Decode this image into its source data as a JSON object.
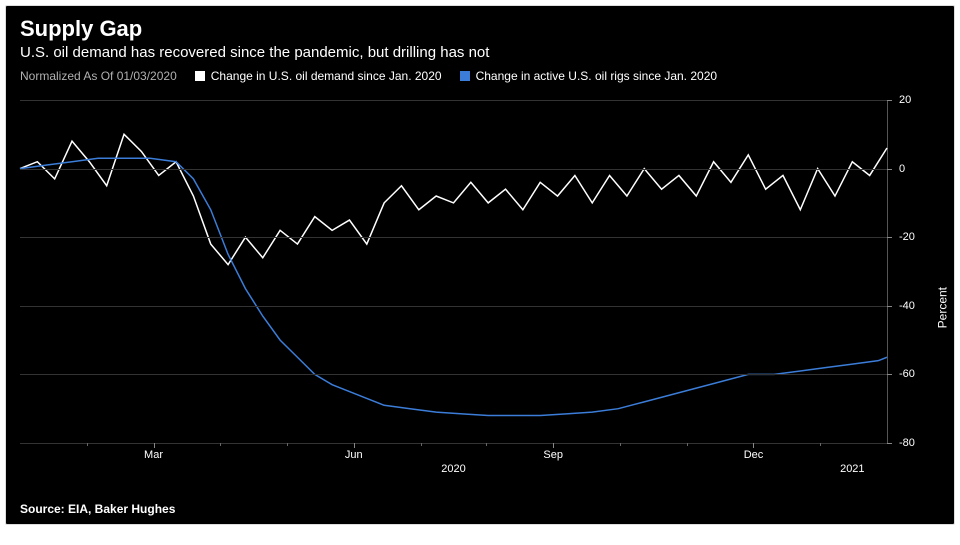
{
  "title": "Supply Gap",
  "subtitle": "U.S. oil demand has recovered since the pandemic, but drilling has not",
  "legend_note": "Normalized As Of 01/03/2020",
  "series": [
    {
      "name": "Change in U.S. oil demand since Jan. 2020",
      "color": "#ffffff",
      "data": [
        [
          0,
          0
        ],
        [
          2,
          2
        ],
        [
          4,
          -3
        ],
        [
          6,
          8
        ],
        [
          8,
          2
        ],
        [
          10,
          -5
        ],
        [
          12,
          10
        ],
        [
          14,
          5
        ],
        [
          16,
          -2
        ],
        [
          18,
          2
        ],
        [
          20,
          -8
        ],
        [
          22,
          -22
        ],
        [
          24,
          -28
        ],
        [
          26,
          -20
        ],
        [
          28,
          -26
        ],
        [
          30,
          -18
        ],
        [
          32,
          -22
        ],
        [
          34,
          -14
        ],
        [
          36,
          -18
        ],
        [
          38,
          -15
        ],
        [
          40,
          -22
        ],
        [
          42,
          -10
        ],
        [
          44,
          -5
        ],
        [
          46,
          -12
        ],
        [
          48,
          -8
        ],
        [
          50,
          -10
        ],
        [
          52,
          -4
        ],
        [
          54,
          -10
        ],
        [
          56,
          -6
        ],
        [
          58,
          -12
        ],
        [
          60,
          -4
        ],
        [
          62,
          -8
        ],
        [
          64,
          -2
        ],
        [
          66,
          -10
        ],
        [
          68,
          -2
        ],
        [
          70,
          -8
        ],
        [
          72,
          0
        ],
        [
          74,
          -6
        ],
        [
          76,
          -2
        ],
        [
          78,
          -8
        ],
        [
          80,
          2
        ],
        [
          82,
          -4
        ],
        [
          84,
          4
        ],
        [
          86,
          -6
        ],
        [
          88,
          -2
        ],
        [
          90,
          -12
        ],
        [
          92,
          0
        ],
        [
          94,
          -8
        ],
        [
          96,
          2
        ],
        [
          98,
          -2
        ],
        [
          100,
          6
        ]
      ]
    },
    {
      "name": "Change in active U.S. oil rigs since Jan. 2020",
      "color": "#3b7dd8",
      "data": [
        [
          0,
          0
        ],
        [
          3,
          1
        ],
        [
          6,
          2
        ],
        [
          9,
          3
        ],
        [
          12,
          3
        ],
        [
          15,
          3
        ],
        [
          18,
          2
        ],
        [
          20,
          -3
        ],
        [
          22,
          -12
        ],
        [
          24,
          -25
        ],
        [
          26,
          -35
        ],
        [
          28,
          -43
        ],
        [
          30,
          -50
        ],
        [
          32,
          -55
        ],
        [
          34,
          -60
        ],
        [
          36,
          -63
        ],
        [
          38,
          -65
        ],
        [
          40,
          -67
        ],
        [
          42,
          -69
        ],
        [
          45,
          -70
        ],
        [
          48,
          -71
        ],
        [
          51,
          -71.5
        ],
        [
          54,
          -72
        ],
        [
          57,
          -72
        ],
        [
          60,
          -72
        ],
        [
          63,
          -71.5
        ],
        [
          66,
          -71
        ],
        [
          69,
          -70
        ],
        [
          72,
          -68
        ],
        [
          75,
          -66
        ],
        [
          78,
          -64
        ],
        [
          81,
          -62
        ],
        [
          84,
          -60
        ],
        [
          87,
          -60
        ],
        [
          90,
          -59
        ],
        [
          93,
          -58
        ],
        [
          96,
          -57
        ],
        [
          99,
          -56
        ],
        [
          100,
          -55
        ]
      ]
    }
  ],
  "y_axis": {
    "label": "Percent",
    "min": -80,
    "max": 20,
    "ticks": [
      20,
      0,
      -20,
      -40,
      -60,
      -80
    ]
  },
  "x_axis": {
    "months": [
      {
        "label": "Mar",
        "pos": 15.4
      },
      {
        "label": "Jun",
        "pos": 38.5
      },
      {
        "label": "Sep",
        "pos": 61.5
      },
      {
        "label": "Dec",
        "pos": 84.6
      }
    ],
    "minor_ticks": [
      7.7,
      23.1,
      30.8,
      46.2,
      53.8,
      69.2,
      76.9,
      92.3
    ],
    "years": [
      {
        "label": "2020",
        "pos": 50
      },
      {
        "label": "2021",
        "pos": 96
      }
    ]
  },
  "source": "Source: EIA, Baker Hughes",
  "colors": {
    "background": "#000000",
    "text": "#ffffff",
    "grid": "#333333",
    "axis": "#555555"
  },
  "line_width": 1.5
}
